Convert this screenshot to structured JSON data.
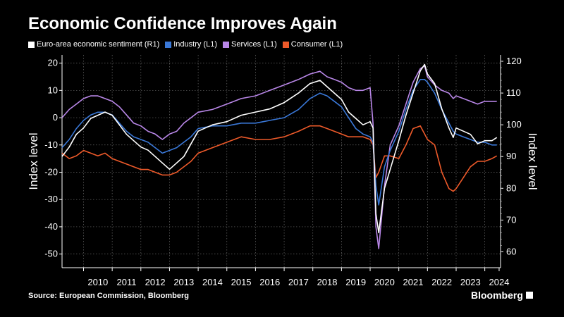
{
  "header": {
    "title": "Economic Confidence Improves Again"
  },
  "source": "Source: European Commission, Bloomberg",
  "brand": "Bloomberg",
  "chart_data": {
    "type": "line",
    "title": "Economic Confidence Improves Again",
    "xlabel": "",
    "ylabel_left": "Index level",
    "ylabel_right": "Index level",
    "ylim_left": [
      -55,
      23
    ],
    "ylim_right": [
      55,
      122
    ],
    "left_ticks": [
      "20",
      "10",
      "0",
      "-10",
      "-20",
      "-30",
      "-40",
      "-50"
    ],
    "right_ticks": [
      "120",
      "110",
      "100",
      "90",
      "80",
      "70",
      "60"
    ],
    "x_labels": [
      "2010",
      "2011",
      "2012",
      "2013",
      "2014",
      "2015",
      "2016",
      "2017",
      "2018",
      "2019",
      "2020",
      "2021",
      "2022",
      "2023",
      "2024"
    ],
    "x_range": [
      2009.25,
      2024.55
    ],
    "grid": true,
    "series": [
      {
        "name": "Euro-area economic sentiment (R1)",
        "axis": "right",
        "color": "#ffffff",
        "x": [
          2009.25,
          2009.5,
          2009.75,
          2010.0,
          2010.25,
          2010.5,
          2010.75,
          2011.0,
          2011.25,
          2011.5,
          2011.75,
          2012.0,
          2012.25,
          2012.5,
          2012.75,
          2013.0,
          2013.25,
          2013.5,
          2013.75,
          2014.0,
          2014.5,
          2015.0,
          2015.5,
          2016.0,
          2016.5,
          2017.0,
          2017.5,
          2017.9,
          2018.25,
          2018.5,
          2018.75,
          2019.0,
          2019.25,
          2019.5,
          2019.75,
          2020.0,
          2020.1,
          2020.2,
          2020.3,
          2020.5,
          2020.7,
          2021.0,
          2021.25,
          2021.5,
          2021.75,
          2021.9,
          2022.0,
          2022.25,
          2022.5,
          2022.75,
          2022.9,
          2023.0,
          2023.25,
          2023.5,
          2023.75,
          2024.0,
          2024.25,
          2024.42
        ],
        "values": [
          90,
          93,
          97,
          99,
          102,
          103,
          104,
          103,
          100,
          97,
          95,
          93,
          92,
          90,
          88,
          86,
          88,
          90,
          94,
          98,
          100,
          101,
          103,
          104,
          105,
          107,
          110,
          113,
          114,
          112,
          110,
          108,
          104,
          102,
          100,
          101,
          99,
          72,
          66,
          80,
          86,
          95,
          103,
          110,
          117,
          119,
          116,
          113,
          105,
          99,
          96,
          99,
          98,
          97,
          94,
          95,
          95,
          96
        ]
      },
      {
        "name": "Industry (L1)",
        "axis": "left",
        "color": "#3a78d8",
        "x": [
          2009.25,
          2009.5,
          2009.75,
          2010.0,
          2010.25,
          2010.5,
          2010.75,
          2011.0,
          2011.25,
          2011.5,
          2011.75,
          2012.0,
          2012.25,
          2012.5,
          2012.75,
          2013.0,
          2013.25,
          2013.5,
          2013.75,
          2014.0,
          2014.5,
          2015.0,
          2015.5,
          2016.0,
          2016.5,
          2017.0,
          2017.5,
          2017.9,
          2018.25,
          2018.5,
          2018.75,
          2019.0,
          2019.25,
          2019.5,
          2019.75,
          2020.0,
          2020.1,
          2020.2,
          2020.3,
          2020.5,
          2020.7,
          2021.0,
          2021.25,
          2021.5,
          2021.75,
          2021.9,
          2022.0,
          2022.25,
          2022.5,
          2022.75,
          2022.9,
          2023.0,
          2023.25,
          2023.5,
          2023.75,
          2024.0,
          2024.25,
          2024.42
        ],
        "values": [
          -11,
          -8,
          -4,
          -1,
          1,
          2,
          2,
          1,
          -2,
          -5,
          -7,
          -8,
          -9,
          -11,
          -13,
          -12,
          -11,
          -9,
          -7,
          -4,
          -3,
          -3,
          -2,
          -2,
          -1,
          0,
          3,
          7,
          9,
          8,
          6,
          4,
          0,
          -4,
          -6,
          -7,
          -9,
          -25,
          -32,
          -18,
          -12,
          -5,
          3,
          10,
          14,
          14,
          13,
          9,
          3,
          -2,
          -5,
          -6,
          -7,
          -8,
          -9,
          -9,
          -10,
          -10
        ]
      },
      {
        "name": "Services (L1)",
        "axis": "left",
        "color": "#b987e8",
        "x": [
          2009.25,
          2009.5,
          2009.75,
          2010.0,
          2010.25,
          2010.5,
          2010.75,
          2011.0,
          2011.25,
          2011.5,
          2011.75,
          2012.0,
          2012.25,
          2012.5,
          2012.75,
          2013.0,
          2013.25,
          2013.5,
          2013.75,
          2014.0,
          2014.5,
          2015.0,
          2015.5,
          2016.0,
          2016.5,
          2017.0,
          2017.5,
          2017.9,
          2018.25,
          2018.5,
          2018.75,
          2019.0,
          2019.25,
          2019.5,
          2019.75,
          2020.0,
          2020.1,
          2020.2,
          2020.3,
          2020.5,
          2020.7,
          2021.0,
          2021.25,
          2021.5,
          2021.75,
          2021.9,
          2022.0,
          2022.25,
          2022.5,
          2022.75,
          2022.9,
          2023.0,
          2023.25,
          2023.5,
          2023.75,
          2024.0,
          2024.25,
          2024.42
        ],
        "values": [
          0,
          3,
          5,
          7,
          8,
          8,
          7,
          6,
          4,
          1,
          -2,
          -3,
          -5,
          -6,
          -8,
          -6,
          -5,
          -2,
          0,
          2,
          3,
          5,
          7,
          8,
          10,
          12,
          14,
          16,
          17,
          15,
          14,
          13,
          11,
          10,
          10,
          11,
          -2,
          -40,
          -48,
          -25,
          -10,
          -3,
          5,
          13,
          18,
          19,
          15,
          12,
          10,
          9,
          7,
          8,
          7,
          6,
          5,
          6,
          6,
          6
        ]
      },
      {
        "name": "Consumer (L1)",
        "axis": "left",
        "color": "#ee5a2a",
        "x": [
          2009.25,
          2009.5,
          2009.75,
          2010.0,
          2010.25,
          2010.5,
          2010.75,
          2011.0,
          2011.25,
          2011.5,
          2011.75,
          2012.0,
          2012.25,
          2012.5,
          2012.75,
          2013.0,
          2013.25,
          2013.5,
          2013.75,
          2014.0,
          2014.5,
          2015.0,
          2015.5,
          2016.0,
          2016.5,
          2017.0,
          2017.5,
          2017.9,
          2018.25,
          2018.5,
          2018.75,
          2019.0,
          2019.25,
          2019.5,
          2019.75,
          2020.0,
          2020.1,
          2020.2,
          2020.3,
          2020.5,
          2020.7,
          2021.0,
          2021.25,
          2021.5,
          2021.75,
          2021.9,
          2022.0,
          2022.25,
          2022.5,
          2022.75,
          2022.9,
          2023.0,
          2023.25,
          2023.5,
          2023.75,
          2024.0,
          2024.25,
          2024.42
        ],
        "values": [
          -13,
          -15,
          -14,
          -12,
          -13,
          -14,
          -13,
          -15,
          -16,
          -17,
          -18,
          -19,
          -19,
          -20,
          -21,
          -21,
          -20,
          -18,
          -16,
          -13,
          -11,
          -9,
          -7,
          -8,
          -8,
          -7,
          -5,
          -3,
          -3,
          -4,
          -5,
          -6,
          -7,
          -7,
          -7,
          -8,
          -10,
          -22,
          -20,
          -14,
          -14,
          -15,
          -10,
          -4,
          -3,
          -6,
          -8,
          -10,
          -20,
          -26,
          -27,
          -26,
          -22,
          -18,
          -16,
          -16,
          -15,
          -14
        ]
      }
    ]
  }
}
